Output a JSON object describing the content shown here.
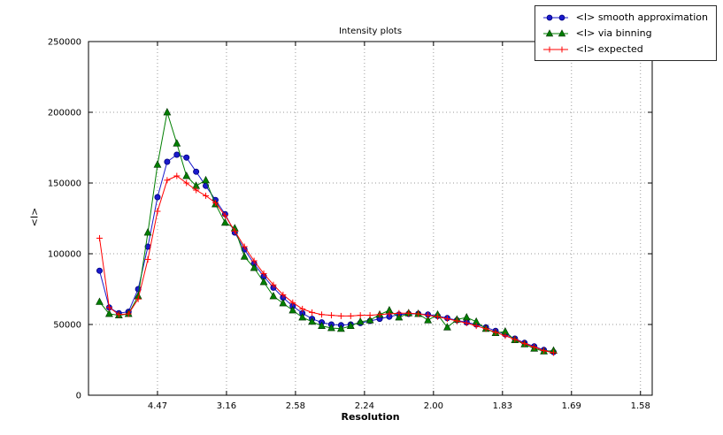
{
  "chart_data": {
    "type": "line",
    "title": "Intensity plots",
    "xlabel": "Resolution",
    "ylabel": "<I>",
    "grid": true,
    "legend_position": "upper right, outside plot top",
    "xlim": [
      0,
      0.4085
    ],
    "ylim": [
      0,
      250000
    ],
    "x_axis_note": "axis linear in 1/d^2; tick labels are resolution d",
    "xticks": {
      "positions": [
        0.05,
        0.1,
        0.15,
        0.2,
        0.25,
        0.3,
        0.35,
        0.4
      ],
      "labels": [
        "4.47",
        "3.16",
        "2.58",
        "2.24",
        "2.00",
        "1.83",
        "1.69",
        "1.58"
      ]
    },
    "yticks": {
      "positions": [
        0,
        50000,
        100000,
        150000,
        200000,
        250000
      ],
      "labels": [
        "0",
        "50000",
        "100000",
        "150000",
        "200000",
        "250000"
      ]
    },
    "x": [
      0.008,
      0.015,
      0.022,
      0.029,
      0.036,
      0.043,
      0.05,
      0.057,
      0.064,
      0.071,
      0.078,
      0.085,
      0.092,
      0.099,
      0.106,
      0.113,
      0.12,
      0.127,
      0.134,
      0.141,
      0.148,
      0.155,
      0.162,
      0.169,
      0.176,
      0.183,
      0.19,
      0.197,
      0.204,
      0.211,
      0.218,
      0.225,
      0.232,
      0.239,
      0.246,
      0.253,
      0.26,
      0.267,
      0.274,
      0.281,
      0.288,
      0.295,
      0.302,
      0.309,
      0.316,
      0.323,
      0.33,
      0.337
    ],
    "series": [
      {
        "name": "<I> smooth approximation",
        "color": "#1a1acc",
        "edge": "#00007f",
        "marker": "circle",
        "values": [
          88000,
          62000,
          58000,
          59000,
          75000,
          105000,
          140000,
          165000,
          170000,
          168000,
          158000,
          148000,
          138000,
          128000,
          115000,
          103000,
          93000,
          84000,
          76000,
          69000,
          63000,
          58000,
          54000,
          51500,
          50000,
          49500,
          50000,
          51000,
          52500,
          54000,
          55500,
          57000,
          57500,
          57500,
          57000,
          56000,
          54500,
          53000,
          51500,
          50000,
          48000,
          45500,
          43000,
          40000,
          37000,
          34500,
          32000,
          30500
        ]
      },
      {
        "name": "<I> via binning",
        "color": "#007f00",
        "edge": "#003300",
        "marker": "triangle",
        "values": [
          66000,
          57500,
          56500,
          57500,
          70000,
          115000,
          163000,
          200000,
          178000,
          155000,
          148000,
          152000,
          135000,
          122000,
          118000,
          98000,
          90000,
          80000,
          70000,
          65000,
          60000,
          55000,
          52000,
          49000,
          47500,
          47000,
          49000,
          52000,
          53000,
          57000,
          60000,
          55000,
          58000,
          57500,
          53000,
          57000,
          48000,
          53500,
          55000,
          52000,
          47000,
          44000,
          45000,
          39000,
          36000,
          33000,
          31000,
          31500
        ]
      },
      {
        "name": "<I> expected",
        "color": "#ff0000",
        "edge": "#ff0000",
        "marker": "plus",
        "values": [
          111000,
          62000,
          57000,
          57500,
          68000,
          96000,
          130000,
          152000,
          155000,
          150000,
          145000,
          141000,
          136000,
          127000,
          116000,
          105000,
          95000,
          86000,
          78000,
          71000,
          65500,
          61000,
          58500,
          57000,
          56500,
          56000,
          56000,
          56500,
          56500,
          57000,
          57500,
          58000,
          58000,
          57500,
          56500,
          55500,
          54000,
          52500,
          51000,
          49000,
          47000,
          44500,
          42000,
          39500,
          36500,
          34000,
          31500,
          30000
        ]
      }
    ]
  }
}
